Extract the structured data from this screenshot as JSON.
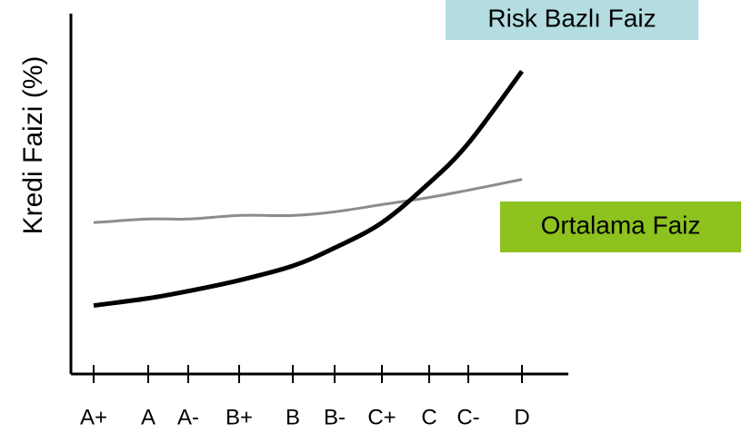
{
  "chart_data": {
    "type": "line",
    "ylabel": "Kredi Faizi (%)",
    "categories": [
      "A+",
      "A",
      "A-",
      "B+",
      "B",
      "B-",
      "C+",
      "C",
      "C-",
      "D"
    ],
    "ylim": [
      0,
      100
    ],
    "series": [
      {
        "name": "Risk Bazlı Faiz",
        "color": "#000000",
        "label_bg": "#b3dde0",
        "values": [
          19,
          21,
          23,
          26,
          30,
          35,
          42,
          53,
          64,
          84
        ]
      },
      {
        "name": "Ortalama Faiz",
        "color": "#8c8c8c",
        "label_bg": "#8dc21f",
        "values": [
          42,
          43,
          43,
          44,
          44,
          45,
          47,
          49,
          51,
          54
        ]
      }
    ]
  }
}
